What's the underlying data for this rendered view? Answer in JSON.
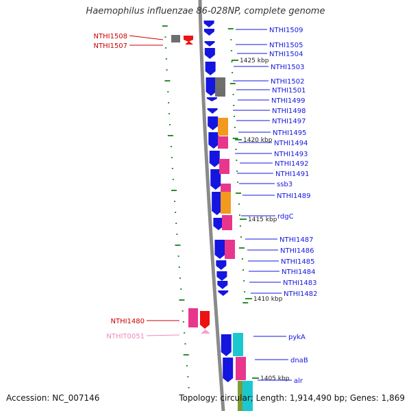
{
  "title": "Haemophilus influenzae 86-028NP, complete genome",
  "footer": {
    "accession": "Accession: NC_007146",
    "topology": "Topology: circular; Length: 1,914,490 bp; Genes: 1,869"
  },
  "colors": {
    "backbone": "#8a8a8a",
    "forward_strand": "#1515e0",
    "reverse_label": "#cc0000",
    "rna_label": "#ee88bb",
    "gray": "#6e6e6e",
    "orange": "#f29a1e",
    "magenta": "#e8368c",
    "cyan": "#1cc8d0",
    "olive": "#7c9c38",
    "red": "#ee1111",
    "pink": "#f4a0c8",
    "tick": "#2f8a2f"
  },
  "scale_labels": [
    "1425 kbp",
    "1420 kbp",
    "1415 kbp",
    "1410 kbp",
    "1405 kbp"
  ],
  "gene_labels": {
    "right": [
      "NTHI1509",
      "NTHI1505",
      "NTHI1504",
      "NTHI1503",
      "NTHI1502",
      "NTHI1501",
      "NTHI1499",
      "NTHI1498",
      "NTHI1497",
      "NTHI1495",
      "NTHI1494",
      "NTHI1493",
      "NTHI1492",
      "NTHI1491",
      "ssb3",
      "NTHI1489",
      "rdgC",
      "NTHI1487",
      "NTHI1486",
      "NTHI1485",
      "NTHI1484",
      "NTHI1483",
      "NTHI1482",
      "pykA",
      "dnaB",
      "alr"
    ],
    "left": [
      "NTHI1508",
      "NTHI1507",
      "NTHI1480",
      "NTHIT0051"
    ]
  }
}
